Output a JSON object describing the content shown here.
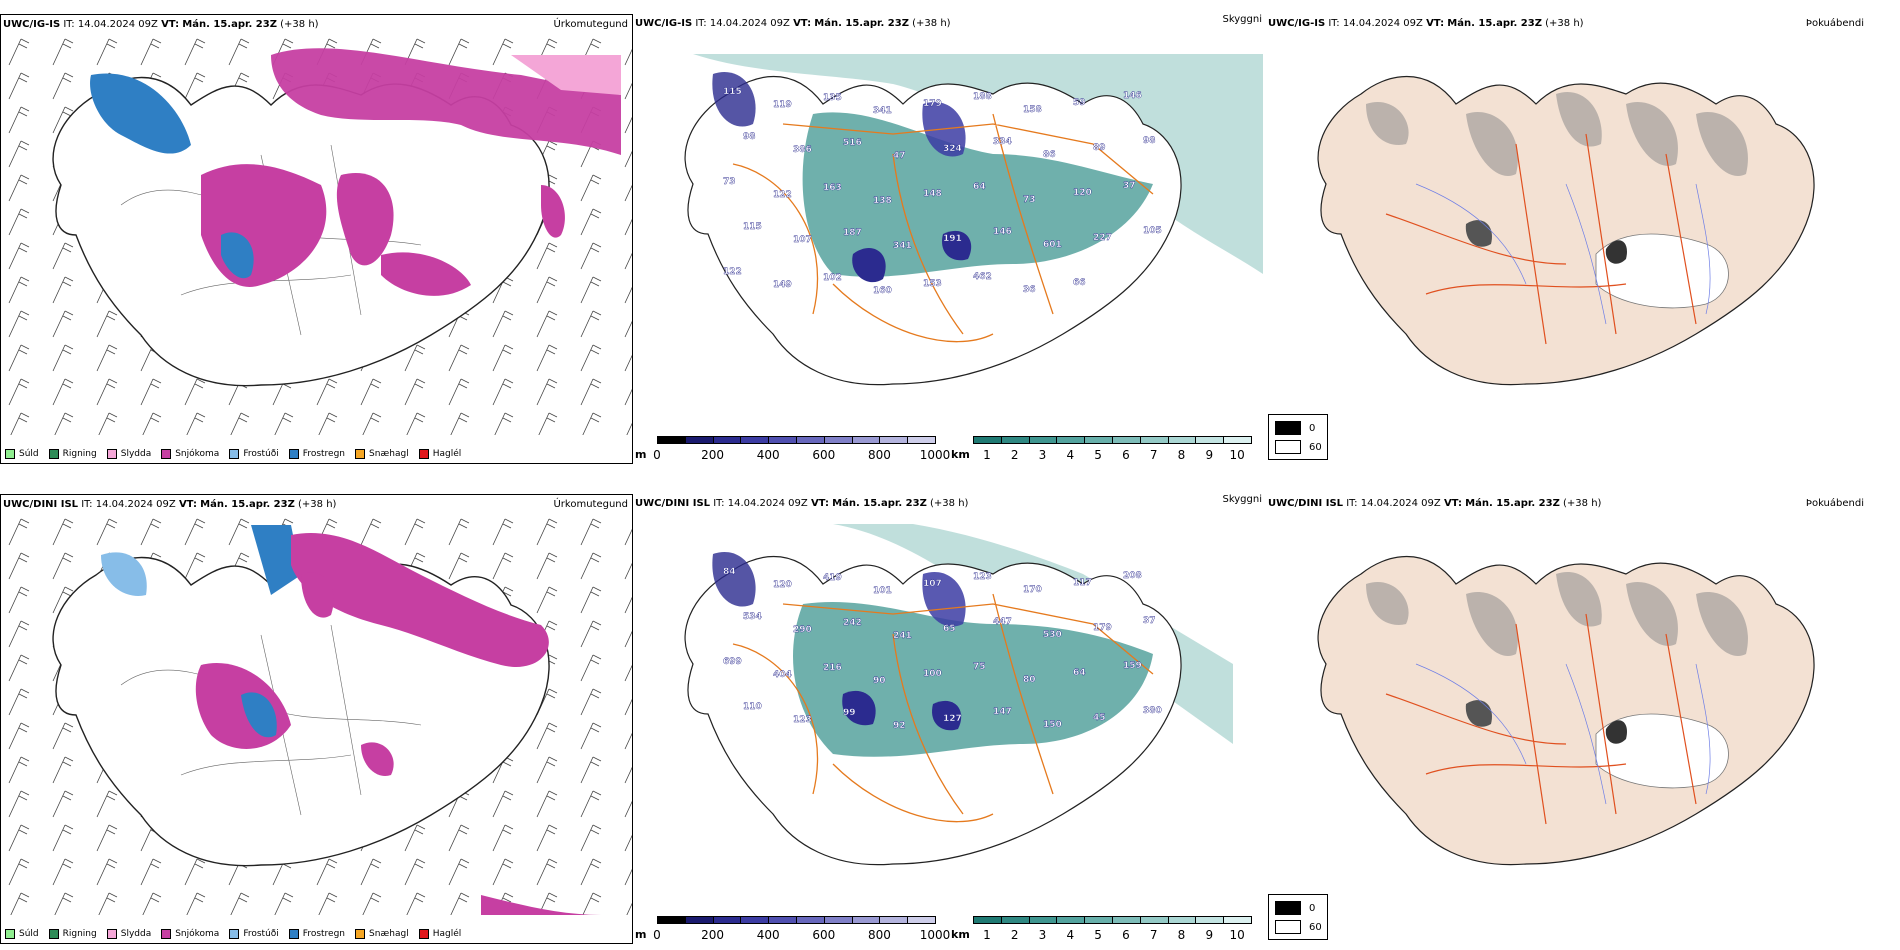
{
  "rows": [
    {
      "model": "UWC/IG-IS",
      "it_label": "IT:",
      "it_value": "14.04.2024 09Z",
      "vt_label": "VT:",
      "vt_value": "Mán. 15.apr. 23Z",
      "lead": "(+38 h)"
    },
    {
      "model": "UWC/DINI ISL",
      "it_label": "IT:",
      "it_value": "14.04.2024 09Z",
      "vt_label": "VT:",
      "vt_value": "Mán. 15.apr. 23Z",
      "lead": "(+38 h)"
    }
  ],
  "panel_titles": {
    "precip": "Úrkomutegund",
    "cloud": "Skyggni",
    "fog": "Þokuábendi"
  },
  "precip_legend": [
    {
      "label": "Súld",
      "color": "#90ee90"
    },
    {
      "label": "Rigning",
      "color": "#2e8b57"
    },
    {
      "label": "Slydda",
      "color": "#f4a6d7"
    },
    {
      "label": "Snjókoma",
      "color": "#c63fa2"
    },
    {
      "label": "Frostúði",
      "color": "#87bde8"
    },
    {
      "label": "Frostregn",
      "color": "#2f7fc4"
    },
    {
      "label": "Snæhagl",
      "color": "#f5a623"
    },
    {
      "label": "Haglél",
      "color": "#e0161b"
    }
  ],
  "ceiling_scale": {
    "unit": "m",
    "ticks": [
      "0",
      "200",
      "400",
      "600",
      "800",
      "1000"
    ],
    "colors": [
      "#000000",
      "#1a1a6e",
      "#2b2b8f",
      "#3c3ca3",
      "#5050b0",
      "#6868bd",
      "#8080c8",
      "#9a9ad3",
      "#b4b4de",
      "#ceceea"
    ]
  },
  "visibility_scale": {
    "unit": "km",
    "ticks": [
      "1",
      "2",
      "3",
      "4",
      "5",
      "6",
      "7",
      "8",
      "9",
      "10"
    ],
    "colors": [
      "#1f7a73",
      "#2f8882",
      "#3f9690",
      "#53a39e",
      "#68b0ab",
      "#7ebdb9",
      "#94cac6",
      "#abd7d4",
      "#c3e4e2",
      "#dcf1f0"
    ]
  },
  "fog_legend": [
    {
      "label": "0",
      "color": "#000000"
    },
    {
      "label": "60",
      "color": "#ffffff"
    }
  ],
  "cloud_labels_top": [
    "115",
    "119",
    "135",
    "341",
    "179",
    "188",
    "158",
    "59",
    "146",
    "98",
    "386",
    "516",
    "47",
    "324",
    "334",
    "86",
    "89",
    "98",
    "73",
    "122",
    "163",
    "138",
    "148",
    "64",
    "73",
    "120",
    "37",
    "115",
    "107",
    "187",
    "341",
    "191",
    "146",
    "601",
    "227",
    "105",
    "122",
    "149",
    "102",
    "160",
    "153",
    "462",
    "36",
    "66"
  ],
  "cloud_labels_bottom": [
    "84",
    "120",
    "419",
    "101",
    "107",
    "123",
    "170",
    "117",
    "208",
    "534",
    "290",
    "242",
    "241",
    "65",
    "447",
    "530",
    "179",
    "37",
    "699",
    "404",
    "216",
    "90",
    "100",
    "75",
    "80",
    "64",
    "159",
    "110",
    "123",
    "99",
    "92",
    "127",
    "147",
    "150",
    "45",
    "380"
  ]
}
